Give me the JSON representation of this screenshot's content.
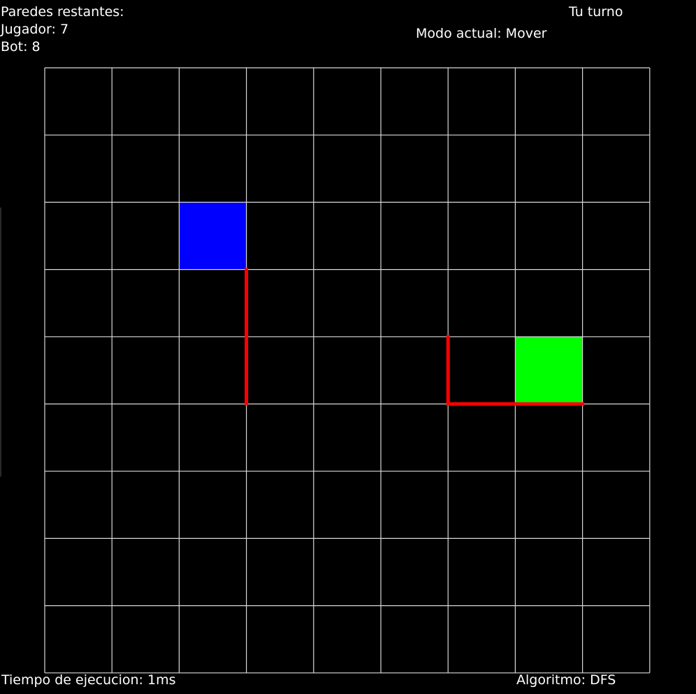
{
  "hud": {
    "walls_title": "Paredes restantes:",
    "walls_player": "Jugador: 7",
    "walls_bot": "Bot: 8",
    "turn": "Tu turno",
    "mode": "Modo actual: Mover",
    "exec_time": "Tiempo de ejecucion: 1ms",
    "algorithm": "Algoritmo: DFS"
  },
  "board": {
    "rows": 9,
    "cols": 9,
    "grid_color": "#d9d9d9",
    "background": "#000000",
    "player": {
      "row": 2,
      "col": 2,
      "color": "#0000ff"
    },
    "bot": {
      "row": 4,
      "col": 7,
      "color": "#00ff00"
    },
    "wall_color": "#ff0000",
    "walls": [
      {
        "orientation": "vertical",
        "line": 3,
        "from": 3,
        "to": 5
      },
      {
        "orientation": "vertical",
        "line": 6,
        "from": 4,
        "to": 5
      },
      {
        "orientation": "horizontal",
        "line": 5,
        "from": 6,
        "to": 8
      }
    ]
  }
}
